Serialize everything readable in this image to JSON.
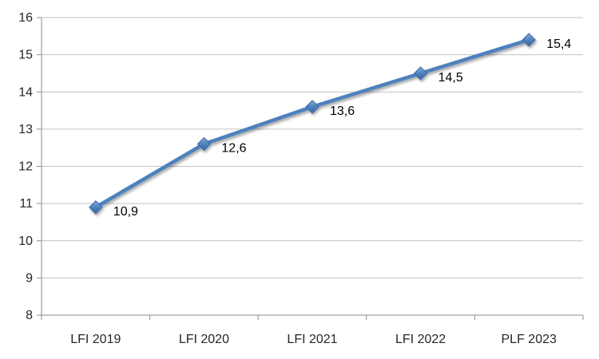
{
  "chart_data": {
    "type": "line",
    "categories": [
      "LFI 2019",
      "LFI 2020",
      "LFI 2021",
      "LFI 2022",
      "PLF 2023"
    ],
    "values": [
      10.9,
      12.6,
      13.6,
      14.5,
      15.4
    ],
    "value_labels": [
      "10,9",
      "12,6",
      "13,6",
      "14,5",
      "15,4"
    ],
    "title": "",
    "xlabel": "",
    "ylabel": "",
    "ylim": [
      8,
      16
    ],
    "ytick_step": 1,
    "yticks": [
      8,
      9,
      10,
      11,
      12,
      13,
      14,
      15,
      16
    ],
    "ytick_labels": [
      "8",
      "9",
      "10",
      "11",
      "12",
      "13",
      "14",
      "15",
      "16"
    ],
    "grid": true,
    "legend_position": "none",
    "marker": "diamond",
    "data_label_position": "right"
  },
  "colors": {
    "background": "#ffffff",
    "line": "#4F81BD",
    "marker_top": "#86ADDE",
    "marker_mid": "#4F81BD",
    "marker_bottom": "#3A689F",
    "marker_stroke": "#3C69A5",
    "gridline": "#C2C2C2",
    "axis": "#8C8C8C",
    "axis_text": "#262626",
    "data_label_text": "#000000"
  }
}
